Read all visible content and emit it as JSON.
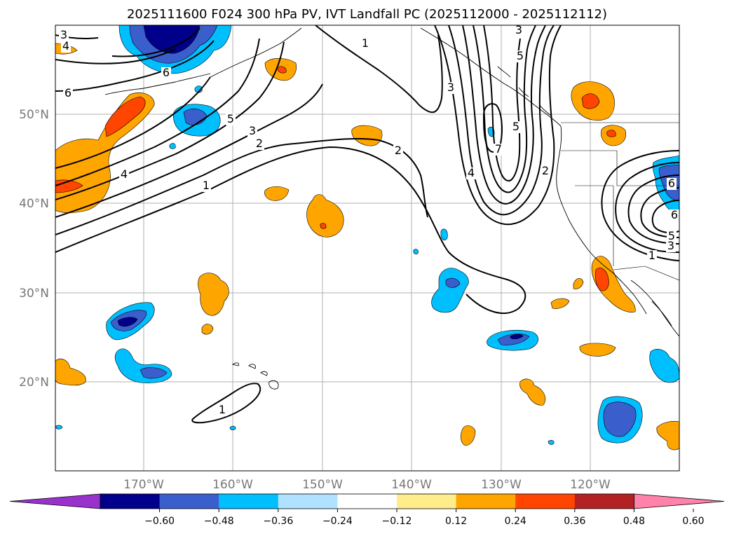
{
  "title": "2025111600 F024 300 hPa PV, IVT Landfall PC (2025112000 - 2025112112)",
  "map": {
    "lat_labels": [
      "50°N",
      "40°N",
      "30°N",
      "20°N"
    ],
    "lon_labels": [
      "170°W",
      "160°W",
      "150°W",
      "140°W",
      "130°W",
      "120°W"
    ],
    "contour_labels": [
      "3",
      "4",
      "6",
      "6",
      "5",
      "3",
      "2",
      "4",
      "1",
      "1",
      "2",
      "3",
      "3",
      "4",
      "5",
      "5",
      "6",
      "7",
      "2",
      "1",
      "3",
      "5",
      "6",
      "1"
    ],
    "colors": {
      "line": "#000000",
      "grid": "#b0b0b0",
      "pos_light": "#ffa500",
      "pos_mid": "#ff4500",
      "pos_dark": "#b22222",
      "neg_light": "#00bfff",
      "neg_mid": "#3a5fcd",
      "neg_dark": "#00008b"
    }
  },
  "colorbar": {
    "ticks": [
      "−0.60",
      "−0.48",
      "−0.36",
      "−0.24",
      "−0.12",
      "0.12",
      "0.24",
      "0.36",
      "0.48",
      "0.60"
    ],
    "colors": [
      "#9932cc",
      "#00008b",
      "#3a5fcd",
      "#00bfff",
      "#b0e2ff",
      "#ffffff",
      "#ffec8b",
      "#ffa500",
      "#ff4500",
      "#b22222",
      "#ff82ab"
    ]
  }
}
